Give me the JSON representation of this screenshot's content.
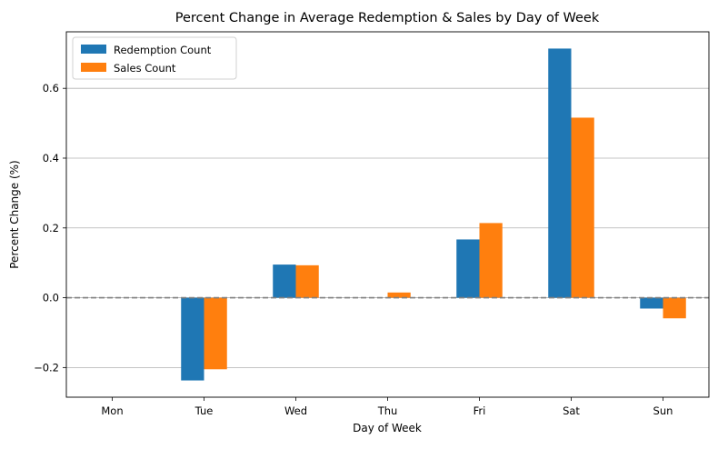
{
  "chart_data": {
    "type": "bar",
    "title": "Percent Change in Average Redemption & Sales by Day of Week",
    "xlabel": "Day of Week",
    "ylabel": "Percent Change (%)",
    "categories": [
      "Mon",
      "Tue",
      "Wed",
      "Thu",
      "Fri",
      "Sat",
      "Sun"
    ],
    "series": [
      {
        "name": "Redemption Count",
        "color": "#1f77b4",
        "values": [
          0.0,
          -0.237,
          0.095,
          0.0,
          0.167,
          0.714,
          -0.031
        ]
      },
      {
        "name": "Sales Count",
        "color": "#ff7f0e",
        "values": [
          0.0,
          -0.205,
          0.093,
          0.015,
          0.214,
          0.516,
          -0.059
        ]
      }
    ],
    "ylim": [
      -0.285,
      0.762
    ],
    "yticks": [
      -0.2,
      0.0,
      0.2,
      0.4,
      0.6
    ],
    "ytick_labels": [
      "−0.2",
      "0.0",
      "0.2",
      "0.4",
      "0.6"
    ],
    "grid": "horizontal",
    "reference_line": {
      "y": 0,
      "style": "dashed",
      "color": "#808080"
    },
    "legend_position": "top-left"
  }
}
